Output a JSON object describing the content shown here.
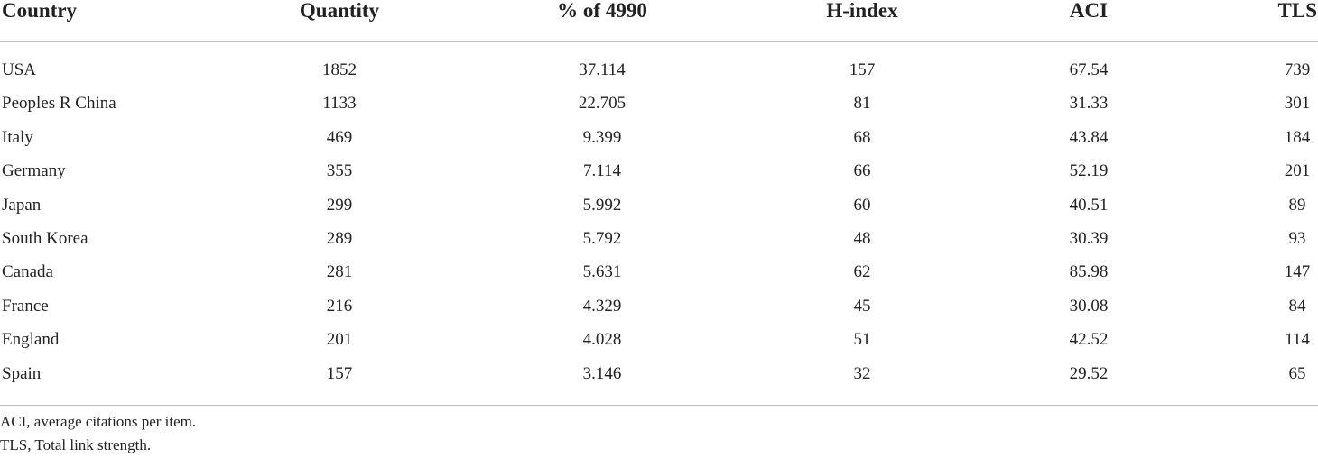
{
  "table": {
    "header": [
      "Country",
      "Quantity",
      "% of 4990",
      "H-index",
      "ACI",
      "TLS"
    ],
    "rows": [
      [
        "USA",
        1852,
        37.114,
        157,
        67.54,
        739
      ],
      [
        "Peoples R China",
        1133,
        22.705,
        81,
        31.33,
        301
      ],
      [
        "Italy",
        469,
        9.399,
        68,
        43.84,
        184
      ],
      [
        "Germany",
        355,
        7.114,
        66,
        52.19,
        201
      ],
      [
        "Japan",
        299,
        5.992,
        60,
        40.51,
        89
      ],
      [
        "South Korea",
        289,
        5.792,
        48,
        30.39,
        93
      ],
      [
        "Canada",
        281,
        5.631,
        62,
        85.98,
        147
      ],
      [
        "France",
        216,
        4.329,
        45,
        30.08,
        84
      ],
      [
        "England",
        201,
        4.028,
        51,
        42.52,
        114
      ],
      [
        "Spain",
        157,
        3.146,
        32,
        29.52,
        65
      ]
    ],
    "footnotes": [
      "ACI, average citations per item.",
      "TLS, Total link strength."
    ]
  }
}
